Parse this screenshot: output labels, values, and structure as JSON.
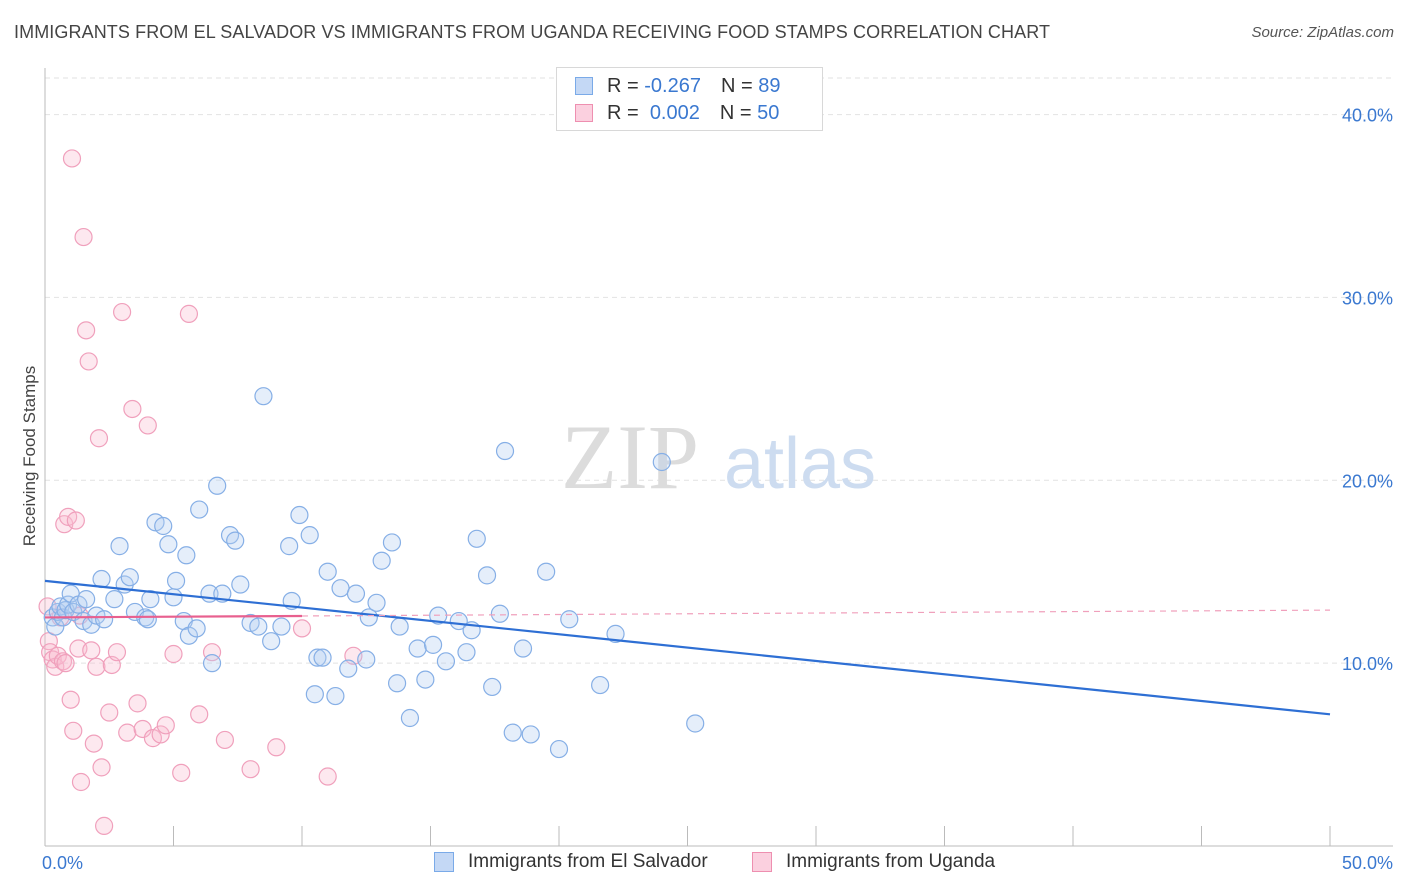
{
  "title": "IMMIGRANTS FROM EL SALVADOR VS IMMIGRANTS FROM UGANDA RECEIVING FOOD STAMPS CORRELATION CHART",
  "source": "Source: ZipAtlas.com",
  "watermark": {
    "zip": "ZIP",
    "atlas": "atlas"
  },
  "legend": {
    "rows": [
      {
        "r_label": "R =",
        "r_value": "-0.267",
        "n_label": "N =",
        "n_value": "89",
        "color": "#7aaae8",
        "fill": "#c4d8f5"
      },
      {
        "r_label": "R =",
        "r_value": "0.002",
        "n_label": "N =",
        "n_value": "50",
        "color": "#ee8fb0",
        "fill": "#fbd0df"
      }
    ]
  },
  "bottom_legend": [
    {
      "label": "Immigrants from El Salvador",
      "color": "#7aaae8",
      "fill": "#c4d8f5"
    },
    {
      "label": "Immigrants from Uganda",
      "color": "#ee8fb0",
      "fill": "#fbd0df"
    }
  ],
  "chart_data": {
    "type": "scatter",
    "title": "IMMIGRANTS FROM EL SALVADOR VS IMMIGRANTS FROM UGANDA RECEIVING FOOD STAMPS CORRELATION CHART",
    "xlabel": "",
    "ylabel": "Receiving Food Stamps",
    "xlim": [
      0,
      50
    ],
    "ylim": [
      0,
      42
    ],
    "x_tick_labels": [
      "0.0%",
      "50.0%"
    ],
    "y_ticks": [
      10,
      20,
      30,
      40
    ],
    "y_tick_labels": [
      "10.0%",
      "20.0%",
      "30.0%",
      "40.0%"
    ],
    "grid": "horizontal dashed",
    "legend_position": "top-center",
    "series": [
      {
        "name": "Immigrants from El Salvador",
        "color": "#5b93e0",
        "x": [
          0.3,
          0.4,
          0.5,
          0.6,
          0.7,
          0.8,
          0.9,
          1.0,
          1.1,
          1.3,
          1.5,
          1.6,
          1.8,
          2.0,
          2.2,
          2.3,
          2.7,
          2.9,
          3.1,
          3.3,
          3.5,
          3.9,
          4.0,
          4.1,
          4.3,
          4.6,
          4.8,
          5.0,
          5.1,
          5.4,
          5.5,
          5.6,
          5.9,
          6.0,
          6.4,
          6.5,
          6.7,
          6.9,
          7.2,
          7.4,
          7.6,
          8.0,
          8.3,
          8.5,
          8.8,
          9.2,
          9.5,
          9.6,
          9.9,
          10.3,
          10.5,
          10.6,
          10.8,
          11.0,
          11.3,
          11.5,
          11.8,
          12.1,
          12.5,
          12.6,
          12.9,
          13.1,
          13.5,
          13.7,
          13.8,
          14.2,
          14.5,
          14.8,
          15.1,
          15.3,
          15.6,
          16.1,
          16.4,
          16.6,
          16.8,
          17.2,
          17.4,
          17.7,
          17.9,
          18.2,
          18.6,
          18.9,
          19.5,
          20.0,
          20.4,
          21.6,
          22.2,
          24.0,
          25.3
        ],
        "y": [
          12.5,
          12.0,
          12.8,
          13.1,
          12.5,
          12.9,
          13.2,
          13.8,
          12.8,
          13.2,
          12.3,
          13.5,
          12.1,
          12.6,
          14.6,
          12.4,
          13.5,
          16.4,
          14.3,
          14.7,
          12.8,
          12.5,
          12.4,
          13.5,
          17.7,
          17.5,
          16.5,
          13.6,
          14.5,
          12.3,
          15.9,
          11.5,
          11.9,
          18.4,
          13.8,
          10.0,
          19.7,
          13.8,
          17.0,
          16.7,
          14.3,
          12.2,
          12.0,
          24.6,
          11.2,
          12.0,
          16.4,
          13.4,
          18.1,
          17.0,
          8.3,
          10.3,
          10.3,
          15.0,
          8.2,
          14.1,
          9.7,
          13.8,
          10.2,
          12.5,
          13.3,
          15.6,
          16.6,
          8.9,
          12.0,
          7.0,
          10.8,
          9.1,
          11.0,
          12.6,
          10.1,
          12.3,
          10.6,
          11.8,
          16.8,
          14.8,
          8.7,
          12.7,
          21.6,
          6.2,
          10.8,
          6.1,
          15.0,
          5.3,
          12.4,
          8.8,
          11.6,
          21.0,
          6.7
        ],
        "trend": {
          "x": [
            0,
            50
          ],
          "y": [
            14.5,
            7.2
          ]
        }
      },
      {
        "name": "Immigrants from Uganda",
        "color": "#ee7aa3",
        "x": [
          0.1,
          0.15,
          0.2,
          0.3,
          0.4,
          0.5,
          0.6,
          0.7,
          0.75,
          0.8,
          0.9,
          1.0,
          1.05,
          1.1,
          1.2,
          1.3,
          1.35,
          1.4,
          1.5,
          1.6,
          1.7,
          1.8,
          1.9,
          2.0,
          2.1,
          2.2,
          2.3,
          2.5,
          2.6,
          2.8,
          3.0,
          3.2,
          3.4,
          3.6,
          3.8,
          4.0,
          4.2,
          4.5,
          4.7,
          5.0,
          5.3,
          5.6,
          6.0,
          6.5,
          7.0,
          8.0,
          9.0,
          10.0,
          11.0,
          12.0
        ],
        "y": [
          13.1,
          11.2,
          10.6,
          10.2,
          9.8,
          10.4,
          12.5,
          10.1,
          17.6,
          10.0,
          18.0,
          8.0,
          37.6,
          6.3,
          17.8,
          10.8,
          12.6,
          3.5,
          33.3,
          28.2,
          26.5,
          10.7,
          5.6,
          9.8,
          22.3,
          4.3,
          1.1,
          7.3,
          9.9,
          10.6,
          29.2,
          6.2,
          23.9,
          7.8,
          6.4,
          23.0,
          5.9,
          6.1,
          6.6,
          10.5,
          4.0,
          29.1,
          7.2,
          10.6,
          5.8,
          4.2,
          5.4,
          11.9,
          3.8,
          10.4
        ],
        "trend": {
          "x": [
            0,
            50
          ],
          "y": [
            12.5,
            12.9
          ],
          "solid_until": 10
        }
      }
    ]
  }
}
